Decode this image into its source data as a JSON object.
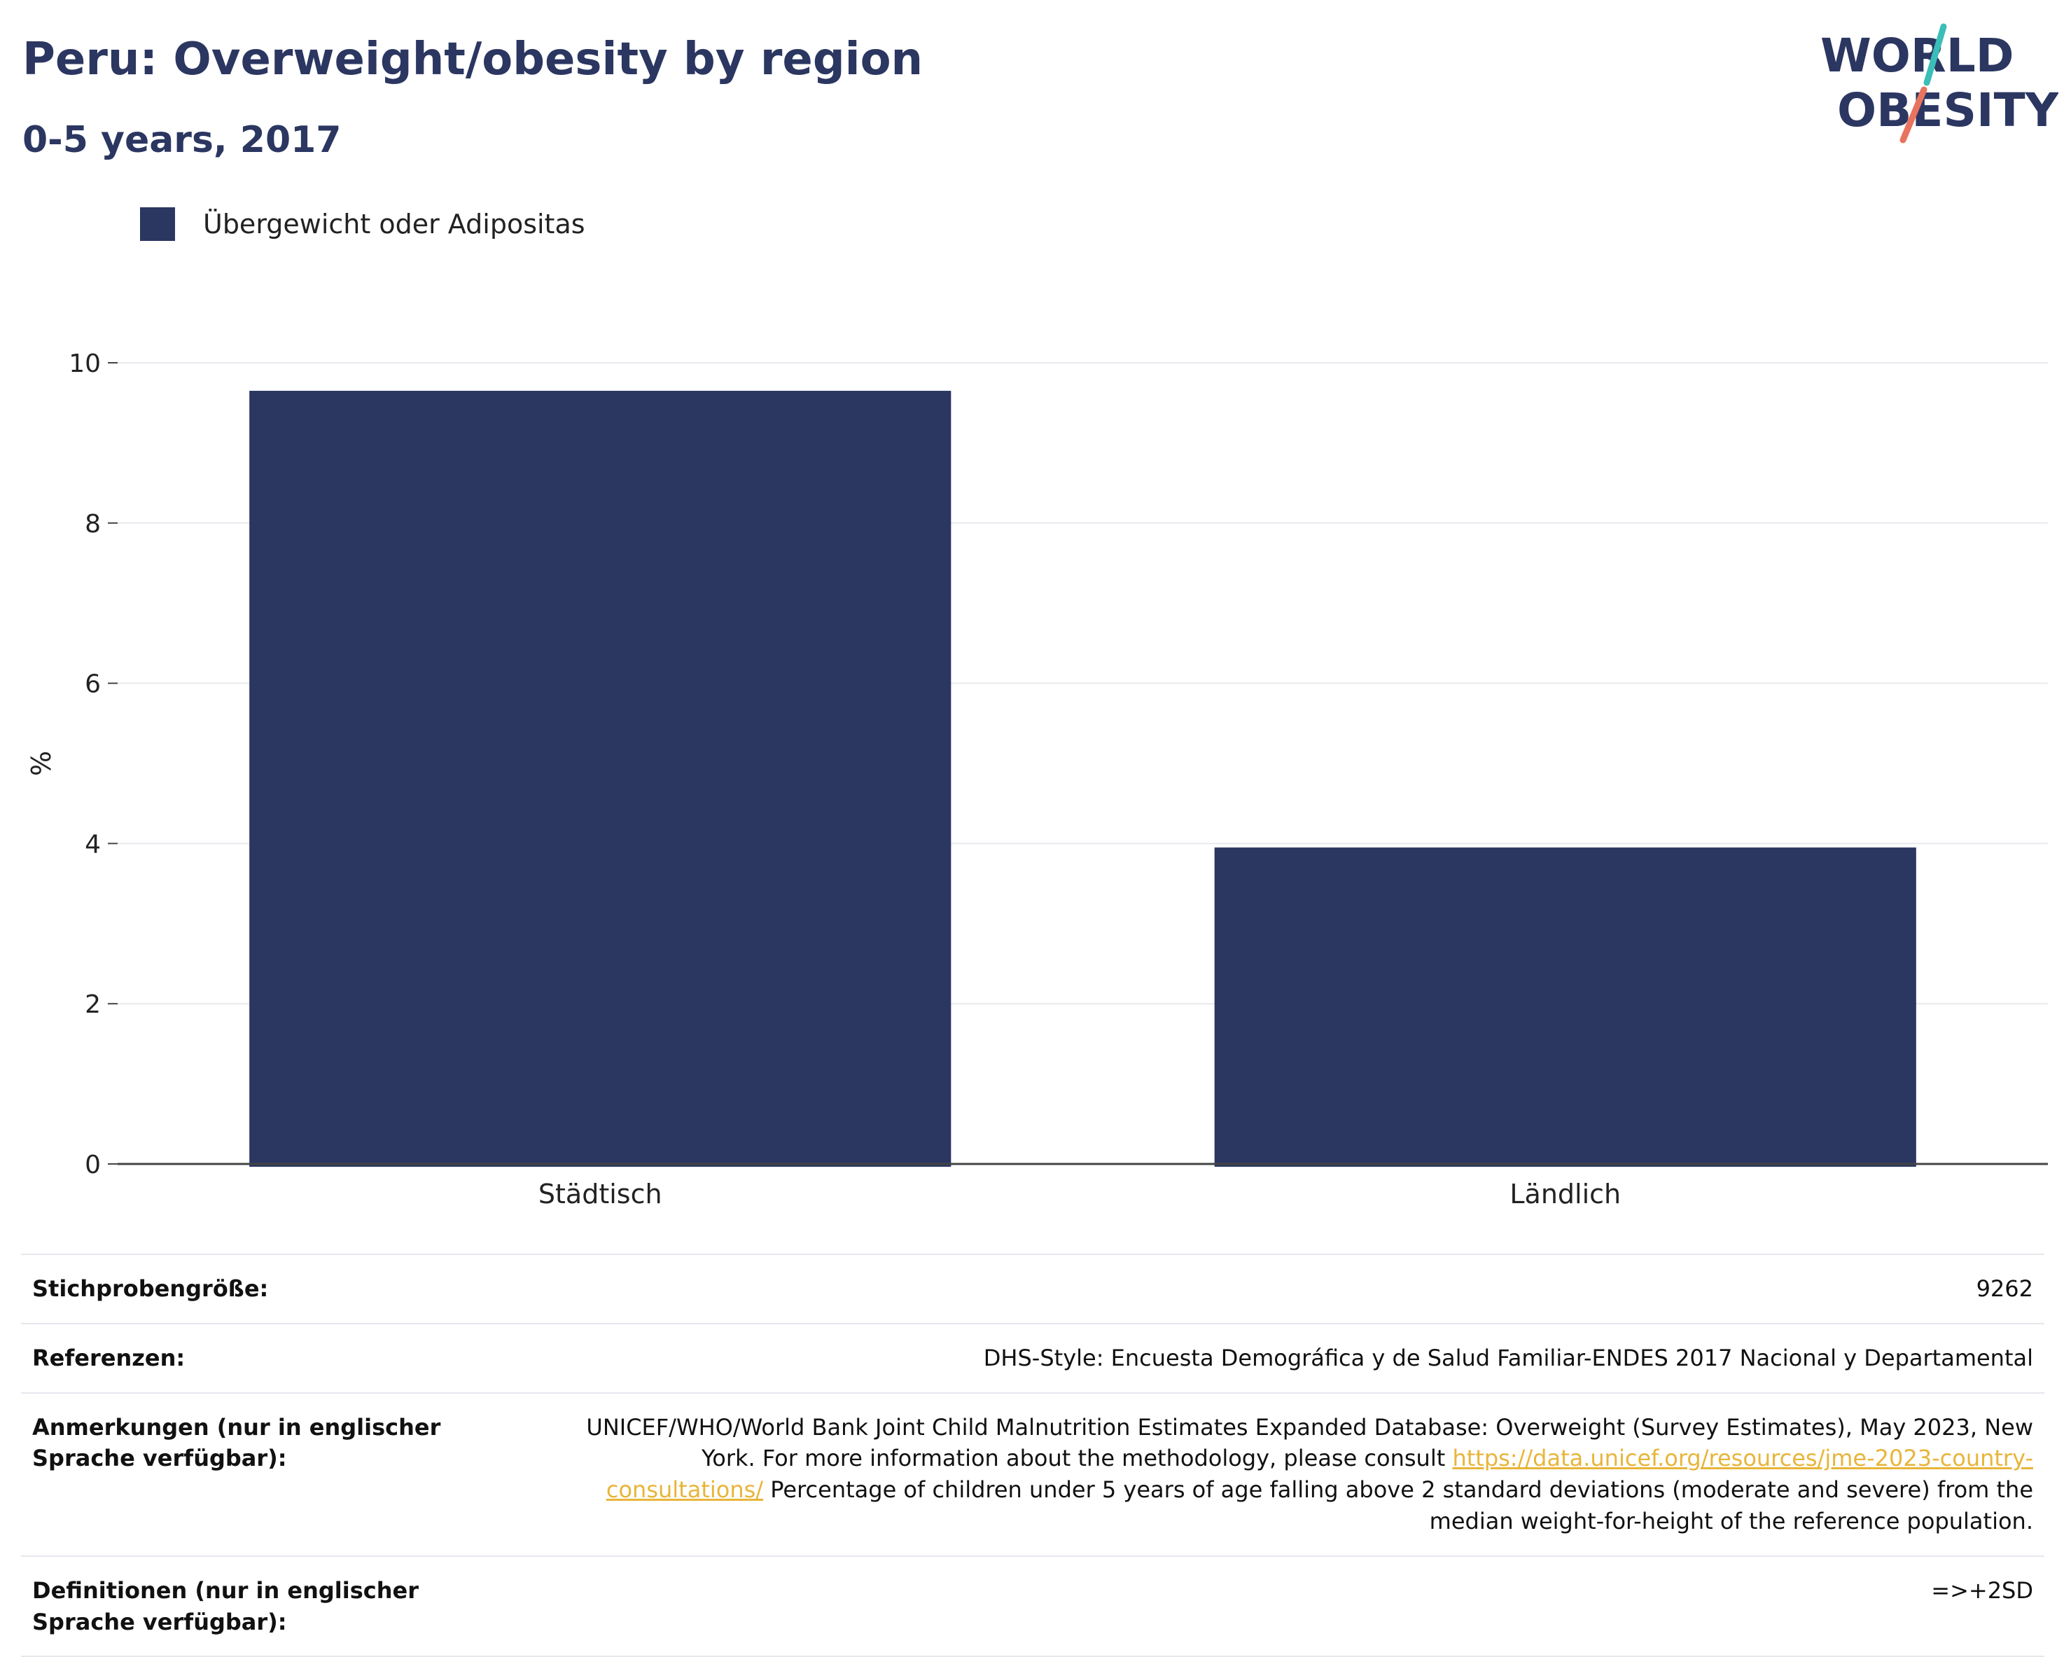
{
  "header": {
    "title": "Peru: Overweight/obesity by region",
    "subtitle": "0-5 years, 2017",
    "logo_line1": "WORLD",
    "logo_line2": "OBESITY"
  },
  "colors": {
    "bar": "#2b3661",
    "accent_teal": "#3bbdb8",
    "accent_coral": "#e8735e",
    "link": "#e8b53a"
  },
  "chart_data": {
    "type": "bar",
    "categories": [
      "Städtisch",
      "Ländlich"
    ],
    "series": [
      {
        "name": "Übergewicht oder Adipositas",
        "values": [
          9.65,
          3.95
        ]
      }
    ],
    "ylabel": "%",
    "xlabel": "",
    "ylim": [
      0,
      10
    ],
    "yticks": [
      0,
      2,
      4,
      6,
      8,
      10
    ],
    "grid": true,
    "legend": "top-left"
  },
  "meta": {
    "sample_label": "Stichprobengröße:",
    "sample_value": "9262",
    "references_label": "Referenzen:",
    "references_value": "DHS-Style: Encuesta Demográfica y de Salud Familiar-ENDES 2017 Nacional y Departamental",
    "notes_label": "Anmerkungen (nur in englischer Sprache verfügbar):",
    "notes_text_1": "UNICEF/WHO/World Bank Joint Child Malnutrition Estimates Expanded Database: Overweight (Survey Estimates), May 2023, New York. For more information about the methodology, please consult",
    "notes_link": "https://data.unicef.org/resources/jme-2023-country-consultations/",
    "notes_text_2": "Percentage of children under 5 years of age falling above 2 standard deviations (moderate and severe) from the median weight-for-height of the reference population.",
    "definitions_label": "Definitionen (nur in englischer Sprache verfügbar):",
    "definitions_value": "=>+2SD"
  }
}
